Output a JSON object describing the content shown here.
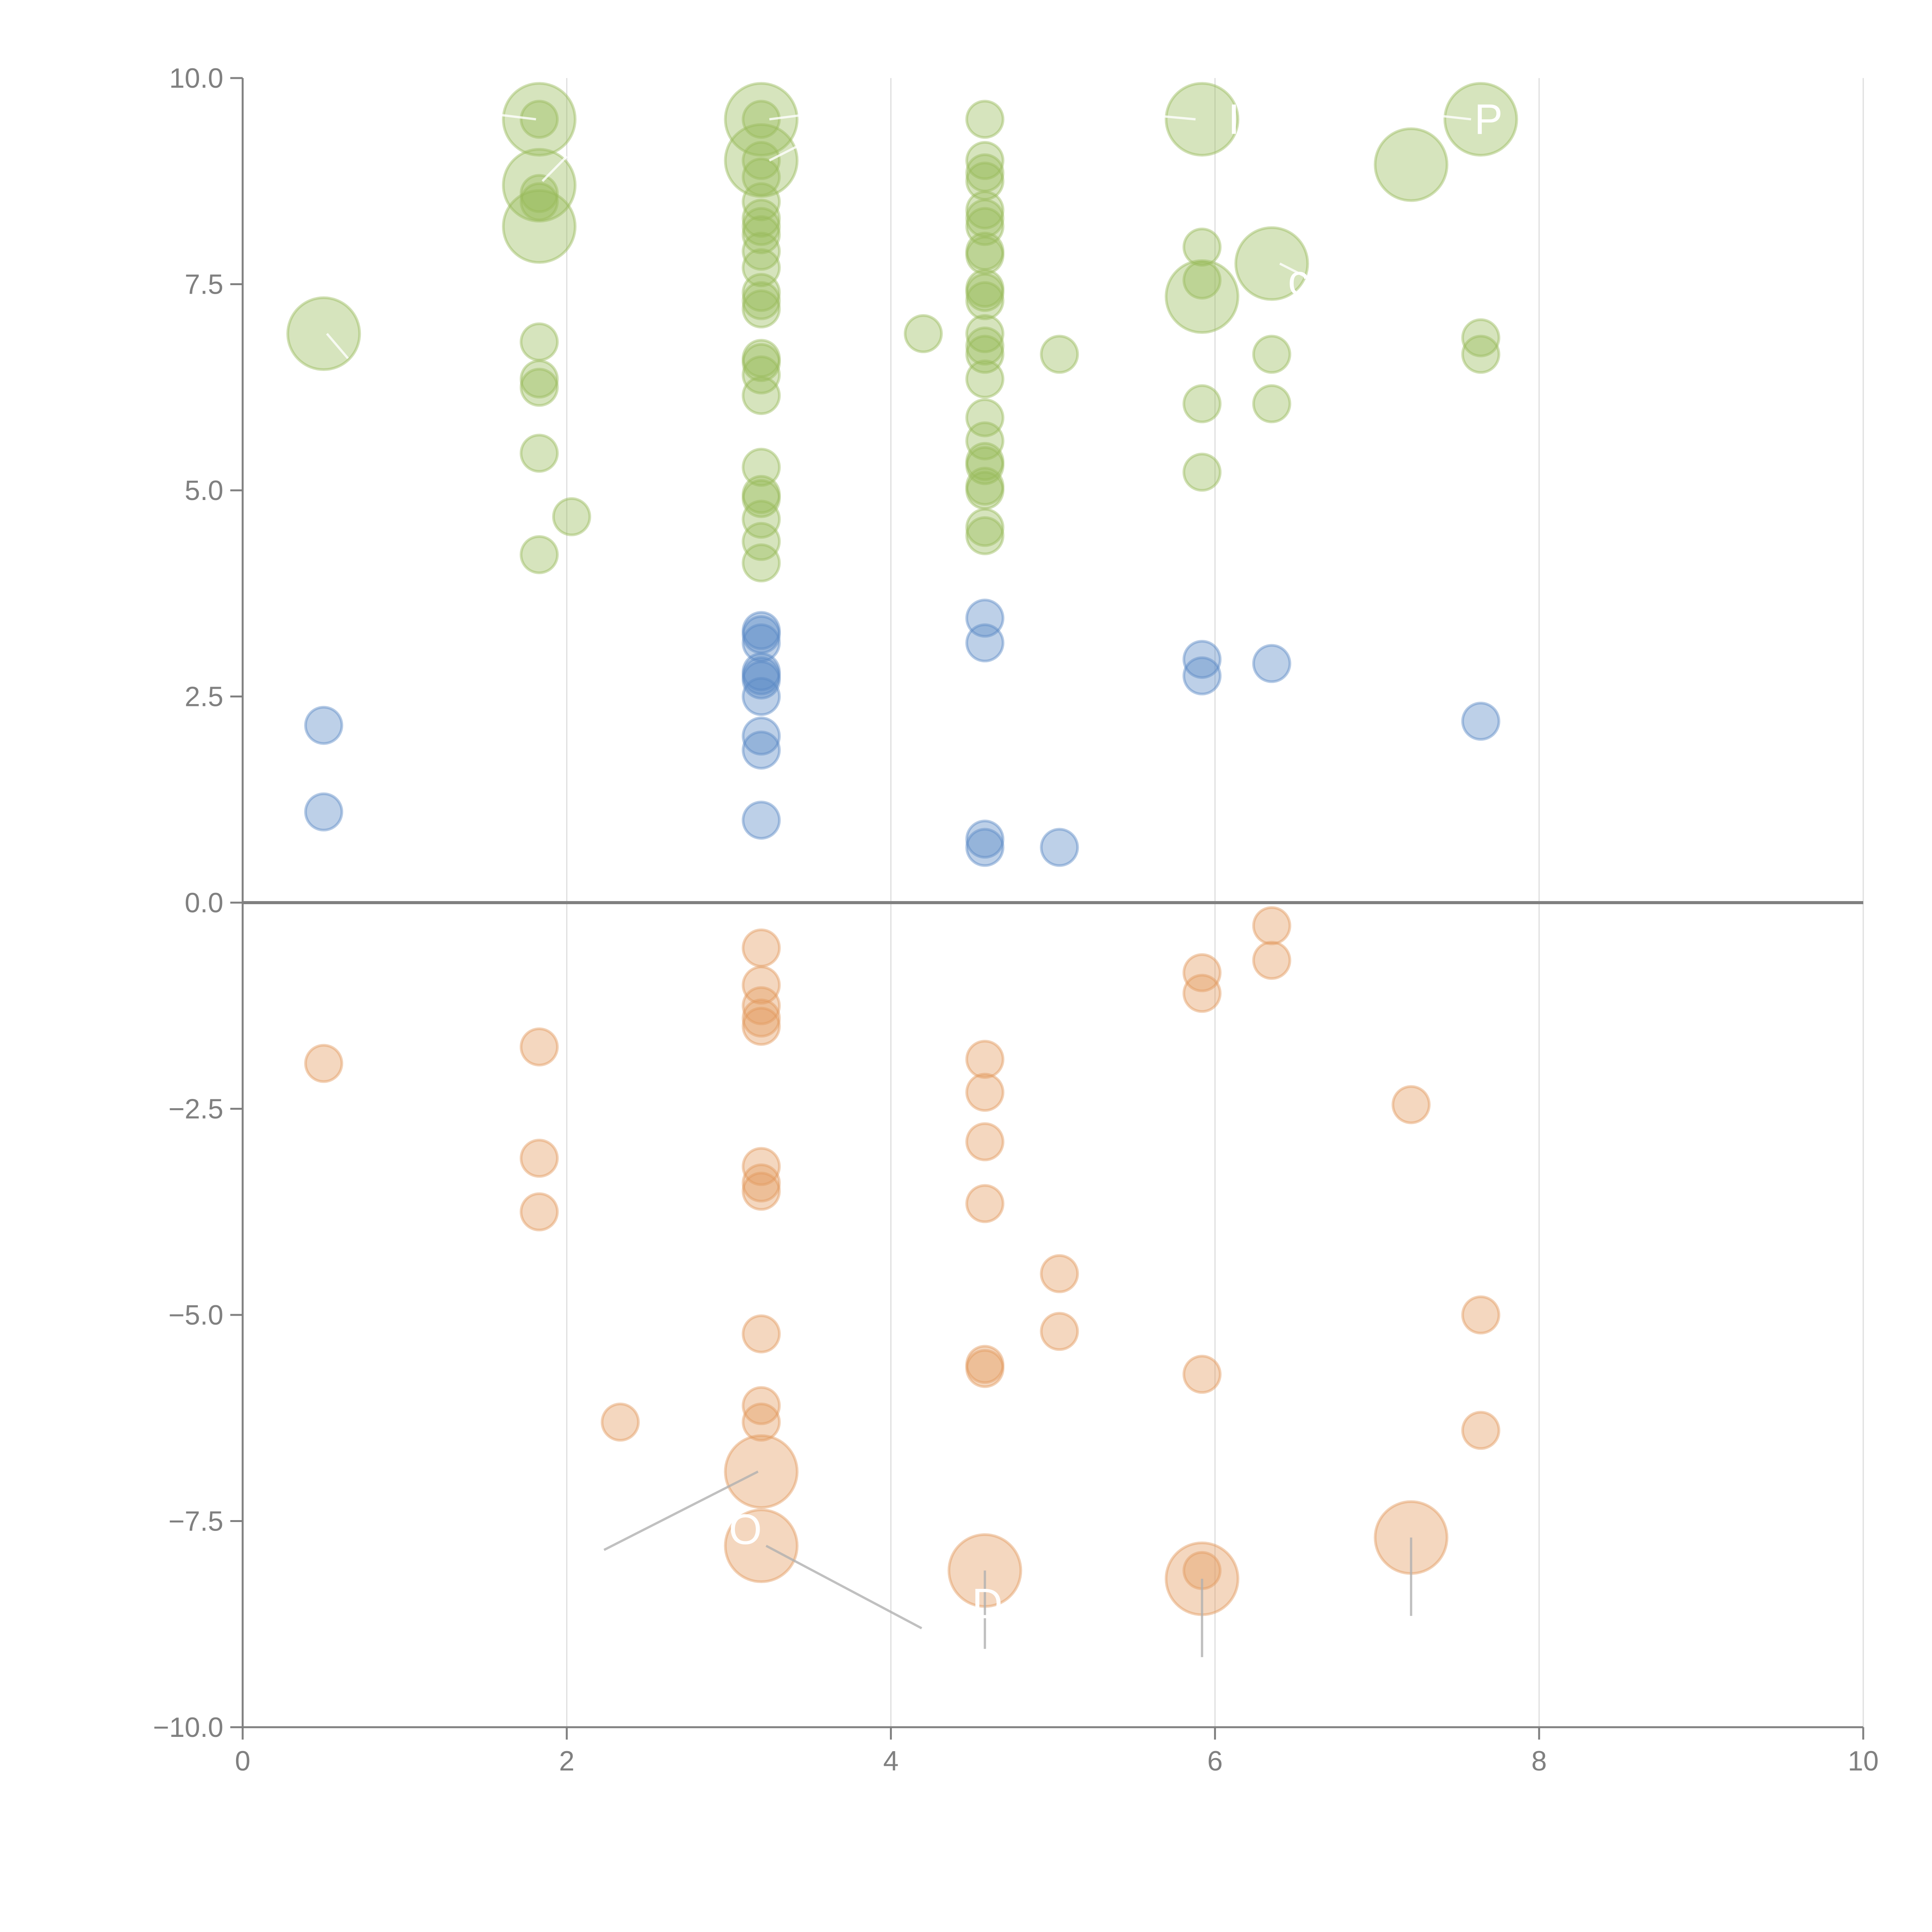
{
  "chart_data": {
    "type": "scatter",
    "title": "",
    "xlabel": "",
    "ylabel": "",
    "xlim": [
      0,
      10
    ],
    "ylim": [
      -10,
      10
    ],
    "grid": "vertical",
    "zero_line": true,
    "x_ticks": [
      "0",
      "2",
      "4",
      "6",
      "8",
      "10"
    ],
    "y_ticks": [
      "10.0",
      "7.5",
      "5.0",
      "2.5",
      "0.0",
      "−2.5",
      "−5.0",
      "−7.5",
      "−10.0"
    ],
    "x_tick_values": [
      0,
      2,
      4,
      6,
      8,
      10
    ],
    "y_tick_values": [
      10,
      7.5,
      5,
      2.5,
      0,
      -2.5,
      -5,
      -7.5,
      -10
    ],
    "size_legend": "bubble area encodes magnitude (large vs small)",
    "series": [
      {
        "name": "green",
        "color": "#98bb5a",
        "points": [
          [
            0.5,
            6.9,
            3
          ],
          [
            1.83,
            9.5,
            3
          ],
          [
            1.83,
            9.5,
            1
          ],
          [
            1.83,
            8.7,
            3
          ],
          [
            1.83,
            8.6,
            1
          ],
          [
            1.83,
            8.5,
            1
          ],
          [
            1.83,
            8.2,
            3
          ],
          [
            1.83,
            6.8,
            1
          ],
          [
            1.83,
            6.35,
            1
          ],
          [
            1.83,
            6.25,
            1
          ],
          [
            1.83,
            5.45,
            1
          ],
          [
            1.83,
            4.22,
            1
          ],
          [
            2.03,
            4.68,
            1
          ],
          [
            3.2,
            9.5,
            3
          ],
          [
            3.2,
            9.5,
            1
          ],
          [
            3.2,
            9.0,
            3
          ],
          [
            3.2,
            9.0,
            1
          ],
          [
            3.2,
            8.8,
            1
          ],
          [
            3.2,
            8.5,
            1
          ],
          [
            3.2,
            8.3,
            1
          ],
          [
            3.2,
            8.2,
            1
          ],
          [
            3.2,
            8.1,
            1
          ],
          [
            3.2,
            7.9,
            1
          ],
          [
            3.2,
            7.7,
            1
          ],
          [
            3.2,
            7.4,
            1
          ],
          [
            3.2,
            7.3,
            1
          ],
          [
            3.2,
            7.2,
            1
          ],
          [
            3.2,
            6.6,
            1
          ],
          [
            3.2,
            6.55,
            1
          ],
          [
            3.2,
            6.4,
            1
          ],
          [
            3.2,
            6.15,
            1
          ],
          [
            3.2,
            5.28,
            1
          ],
          [
            3.2,
            4.95,
            1
          ],
          [
            3.2,
            4.9,
            1
          ],
          [
            3.2,
            4.65,
            1
          ],
          [
            3.2,
            4.38,
            1
          ],
          [
            3.2,
            4.12,
            1
          ],
          [
            4.2,
            6.9,
            1
          ],
          [
            4.58,
            9.5,
            1
          ],
          [
            4.58,
            9.0,
            1
          ],
          [
            4.58,
            8.85,
            1
          ],
          [
            4.58,
            8.75,
            1
          ],
          [
            4.58,
            8.4,
            1
          ],
          [
            4.58,
            8.3,
            1
          ],
          [
            4.58,
            8.2,
            1
          ],
          [
            4.58,
            7.9,
            1
          ],
          [
            4.58,
            7.85,
            1
          ],
          [
            4.58,
            7.45,
            1
          ],
          [
            4.58,
            7.4,
            1
          ],
          [
            4.58,
            7.3,
            1
          ],
          [
            4.58,
            6.9,
            1
          ],
          [
            4.58,
            6.75,
            1
          ],
          [
            4.58,
            6.65,
            1
          ],
          [
            4.58,
            6.35,
            1
          ],
          [
            4.58,
            5.88,
            1
          ],
          [
            4.58,
            5.6,
            1
          ],
          [
            4.58,
            5.35,
            1
          ],
          [
            4.58,
            5.3,
            1
          ],
          [
            4.58,
            5.05,
            1
          ],
          [
            4.58,
            5.0,
            1
          ],
          [
            4.58,
            4.55,
            1
          ],
          [
            4.58,
            4.45,
            1
          ],
          [
            5.04,
            6.65,
            1
          ],
          [
            5.92,
            9.5,
            3
          ],
          [
            5.92,
            7.95,
            1
          ],
          [
            5.92,
            7.55,
            1
          ],
          [
            5.92,
            7.35,
            3
          ],
          [
            5.92,
            6.05,
            1
          ],
          [
            5.92,
            5.22,
            1
          ],
          [
            6.35,
            7.75,
            3
          ],
          [
            6.35,
            6.65,
            1
          ],
          [
            6.35,
            6.05,
            1
          ],
          [
            7.21,
            8.95,
            3
          ],
          [
            7.64,
            9.5,
            3
          ],
          [
            7.64,
            6.85,
            1
          ],
          [
            7.64,
            6.65,
            1
          ]
        ]
      },
      {
        "name": "blue",
        "color": "#5b8ac6",
        "points": [
          [
            0.5,
            2.15,
            1
          ],
          [
            0.5,
            1.1,
            1
          ],
          [
            3.2,
            3.3,
            1
          ],
          [
            3.2,
            3.25,
            1
          ],
          [
            3.2,
            3.15,
            1
          ],
          [
            3.2,
            2.8,
            1
          ],
          [
            3.2,
            2.75,
            1
          ],
          [
            3.2,
            2.7,
            1
          ],
          [
            3.2,
            2.5,
            1
          ],
          [
            3.2,
            2.02,
            1
          ],
          [
            3.2,
            1.85,
            1
          ],
          [
            3.2,
            1.0,
            1
          ],
          [
            4.58,
            3.45,
            1
          ],
          [
            4.58,
            3.15,
            1
          ],
          [
            4.58,
            0.77,
            1
          ],
          [
            4.58,
            0.67,
            1
          ],
          [
            5.04,
            0.67,
            1
          ],
          [
            5.92,
            2.95,
            1
          ],
          [
            5.92,
            2.75,
            1
          ],
          [
            6.35,
            2.9,
            1
          ],
          [
            7.64,
            2.2,
            1
          ]
        ]
      },
      {
        "name": "orange",
        "color": "#e39a5e",
        "points": [
          [
            0.5,
            -1.95,
            1
          ],
          [
            1.83,
            -1.75,
            1
          ],
          [
            1.83,
            -3.1,
            1
          ],
          [
            1.83,
            -3.75,
            1
          ],
          [
            2.33,
            -6.3,
            1
          ],
          [
            3.2,
            -0.55,
            1
          ],
          [
            3.2,
            -1.0,
            1
          ],
          [
            3.2,
            -1.25,
            1
          ],
          [
            3.2,
            -1.4,
            1
          ],
          [
            3.2,
            -1.5,
            1
          ],
          [
            3.2,
            -3.2,
            1
          ],
          [
            3.2,
            -3.4,
            1
          ],
          [
            3.2,
            -3.5,
            1
          ],
          [
            3.2,
            -5.23,
            1
          ],
          [
            3.2,
            -6.1,
            1
          ],
          [
            3.2,
            -6.3,
            1
          ],
          [
            3.2,
            -6.9,
            3
          ],
          [
            3.2,
            -7.8,
            3
          ],
          [
            4.58,
            -1.9,
            1
          ],
          [
            4.58,
            -2.3,
            1
          ],
          [
            4.58,
            -2.9,
            1
          ],
          [
            4.58,
            -3.65,
            1
          ],
          [
            4.58,
            -5.6,
            1
          ],
          [
            4.58,
            -5.65,
            1
          ],
          [
            4.58,
            -8.1,
            3
          ],
          [
            5.04,
            -4.5,
            1
          ],
          [
            5.04,
            -5.2,
            1
          ],
          [
            5.92,
            -0.85,
            1
          ],
          [
            5.92,
            -1.1,
            1
          ],
          [
            5.92,
            -5.72,
            1
          ],
          [
            5.92,
            -8.1,
            1
          ],
          [
            5.92,
            -8.2,
            3
          ],
          [
            6.35,
            -0.28,
            1
          ],
          [
            6.35,
            -0.7,
            1
          ],
          [
            7.21,
            -2.45,
            1
          ],
          [
            7.21,
            -7.7,
            3
          ],
          [
            7.64,
            -5.0,
            1
          ],
          [
            7.64,
            -6.4,
            1
          ]
        ]
      }
    ],
    "annotations": [
      {
        "text": "I",
        "x": 6.08,
        "y": 9.5,
        "color": "#ffffff"
      },
      {
        "text": "P",
        "x": 7.6,
        "y": 9.5,
        "color": "#ffffff"
      },
      {
        "text": "c",
        "x": 6.45,
        "y": 7.55,
        "color": "#ffffff"
      },
      {
        "text": "O",
        "x": 3.0,
        "y": -7.6,
        "color": "#ffffff"
      },
      {
        "text": "D",
        "x": 4.5,
        "y": -8.5,
        "color": "#ffffff"
      }
    ],
    "leader_lines": [
      {
        "from": [
          0.52,
          6.9
        ],
        "to": [
          0.65,
          6.6
        ],
        "color": "#ffffff"
      },
      {
        "from": [
          1.81,
          9.5
        ],
        "to": [
          1.6,
          9.55
        ],
        "color": "#ffffff"
      },
      {
        "from": [
          1.85,
          8.75
        ],
        "to": [
          2.0,
          9.05
        ],
        "color": "#ffffff"
      },
      {
        "from": [
          3.25,
          9.5
        ],
        "to": [
          3.45,
          9.55
        ],
        "color": "#ffffff"
      },
      {
        "from": [
          3.25,
          9.0
        ],
        "to": [
          3.45,
          9.2
        ],
        "color": "#ffffff"
      },
      {
        "from": [
          5.88,
          9.5
        ],
        "to": [
          5.6,
          9.55
        ],
        "color": "#ffffff"
      },
      {
        "from": [
          7.58,
          9.5
        ],
        "to": [
          7.35,
          9.55
        ],
        "color": "#ffffff"
      },
      {
        "from": [
          6.4,
          7.75
        ],
        "to": [
          6.55,
          7.6
        ],
        "color": "#ffffff"
      },
      {
        "from": [
          3.18,
          -6.9
        ],
        "to": [
          2.23,
          -7.85
        ],
        "color": "#b0b0b0"
      },
      {
        "from": [
          3.23,
          -7.8
        ],
        "to": [
          4.19,
          -8.8
        ],
        "color": "#b0b0b0"
      },
      {
        "from": [
          4.58,
          -8.1
        ],
        "to": [
          4.58,
          -9.05
        ],
        "color": "#b0b0b0"
      },
      {
        "from": [
          5.92,
          -8.2
        ],
        "to": [
          5.92,
          -9.15
        ],
        "color": "#b0b0b0"
      },
      {
        "from": [
          7.21,
          -7.7
        ],
        "to": [
          7.21,
          -8.65
        ],
        "color": "#b0b0b0"
      }
    ]
  }
}
